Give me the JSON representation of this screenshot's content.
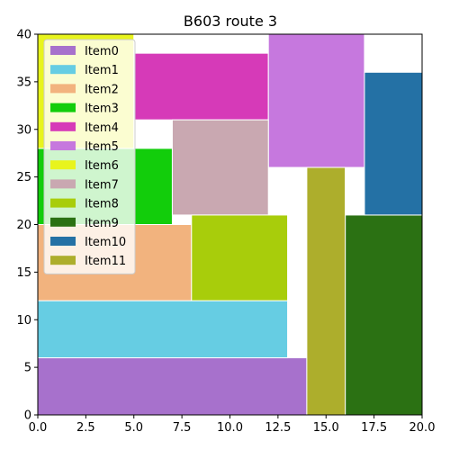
{
  "chart_data": {
    "type": "rectangle-packing",
    "title": "B603 route 3",
    "xlabel": "",
    "ylabel": "",
    "xlim": [
      0,
      20
    ],
    "ylim": [
      0,
      40
    ],
    "xticks": [
      "0.0",
      "2.5",
      "5.0",
      "7.5",
      "10.0",
      "12.5",
      "15.0",
      "17.5",
      "20.0"
    ],
    "yticks": [
      "0",
      "5",
      "10",
      "15",
      "20",
      "25",
      "30",
      "35",
      "40"
    ],
    "grid": false,
    "legend_position": "top-left",
    "items": [
      {
        "name": "Item0",
        "x": 0,
        "y": 0,
        "w": 14,
        "h": 6,
        "color": "#a771cc"
      },
      {
        "name": "Item1",
        "x": 0,
        "y": 6,
        "w": 13,
        "h": 6,
        "color": "#66cde3"
      },
      {
        "name": "Item2",
        "x": 0,
        "y": 12,
        "w": 8,
        "h": 8,
        "color": "#f2b37e"
      },
      {
        "name": "Item3",
        "x": 0,
        "y": 20,
        "w": 7,
        "h": 8,
        "color": "#12cd0b"
      },
      {
        "name": "Item4",
        "x": 5,
        "y": 31,
        "w": 7,
        "h": 7,
        "color": "#d63ab8"
      },
      {
        "name": "Item5",
        "x": 12,
        "y": 26,
        "w": 5,
        "h": 14,
        "color": "#c678de"
      },
      {
        "name": "Item6",
        "x": 0,
        "y": 28,
        "w": 5,
        "h": 12,
        "color": "#e8f41d"
      },
      {
        "name": "Item7",
        "x": 7,
        "y": 21,
        "w": 5,
        "h": 10,
        "color": "#c9a8b1"
      },
      {
        "name": "Item8",
        "x": 8,
        "y": 12,
        "w": 5,
        "h": 9,
        "color": "#a8cd0b"
      },
      {
        "name": "Item9",
        "x": 16,
        "y": 0,
        "w": 4,
        "h": 21,
        "color": "#2b7113"
      },
      {
        "name": "Item10",
        "x": 17,
        "y": 21,
        "w": 3,
        "h": 15,
        "color": "#2471a5"
      },
      {
        "name": "Item11",
        "x": 14,
        "y": 0,
        "w": 2,
        "h": 26,
        "color": "#adae2c"
      }
    ]
  }
}
